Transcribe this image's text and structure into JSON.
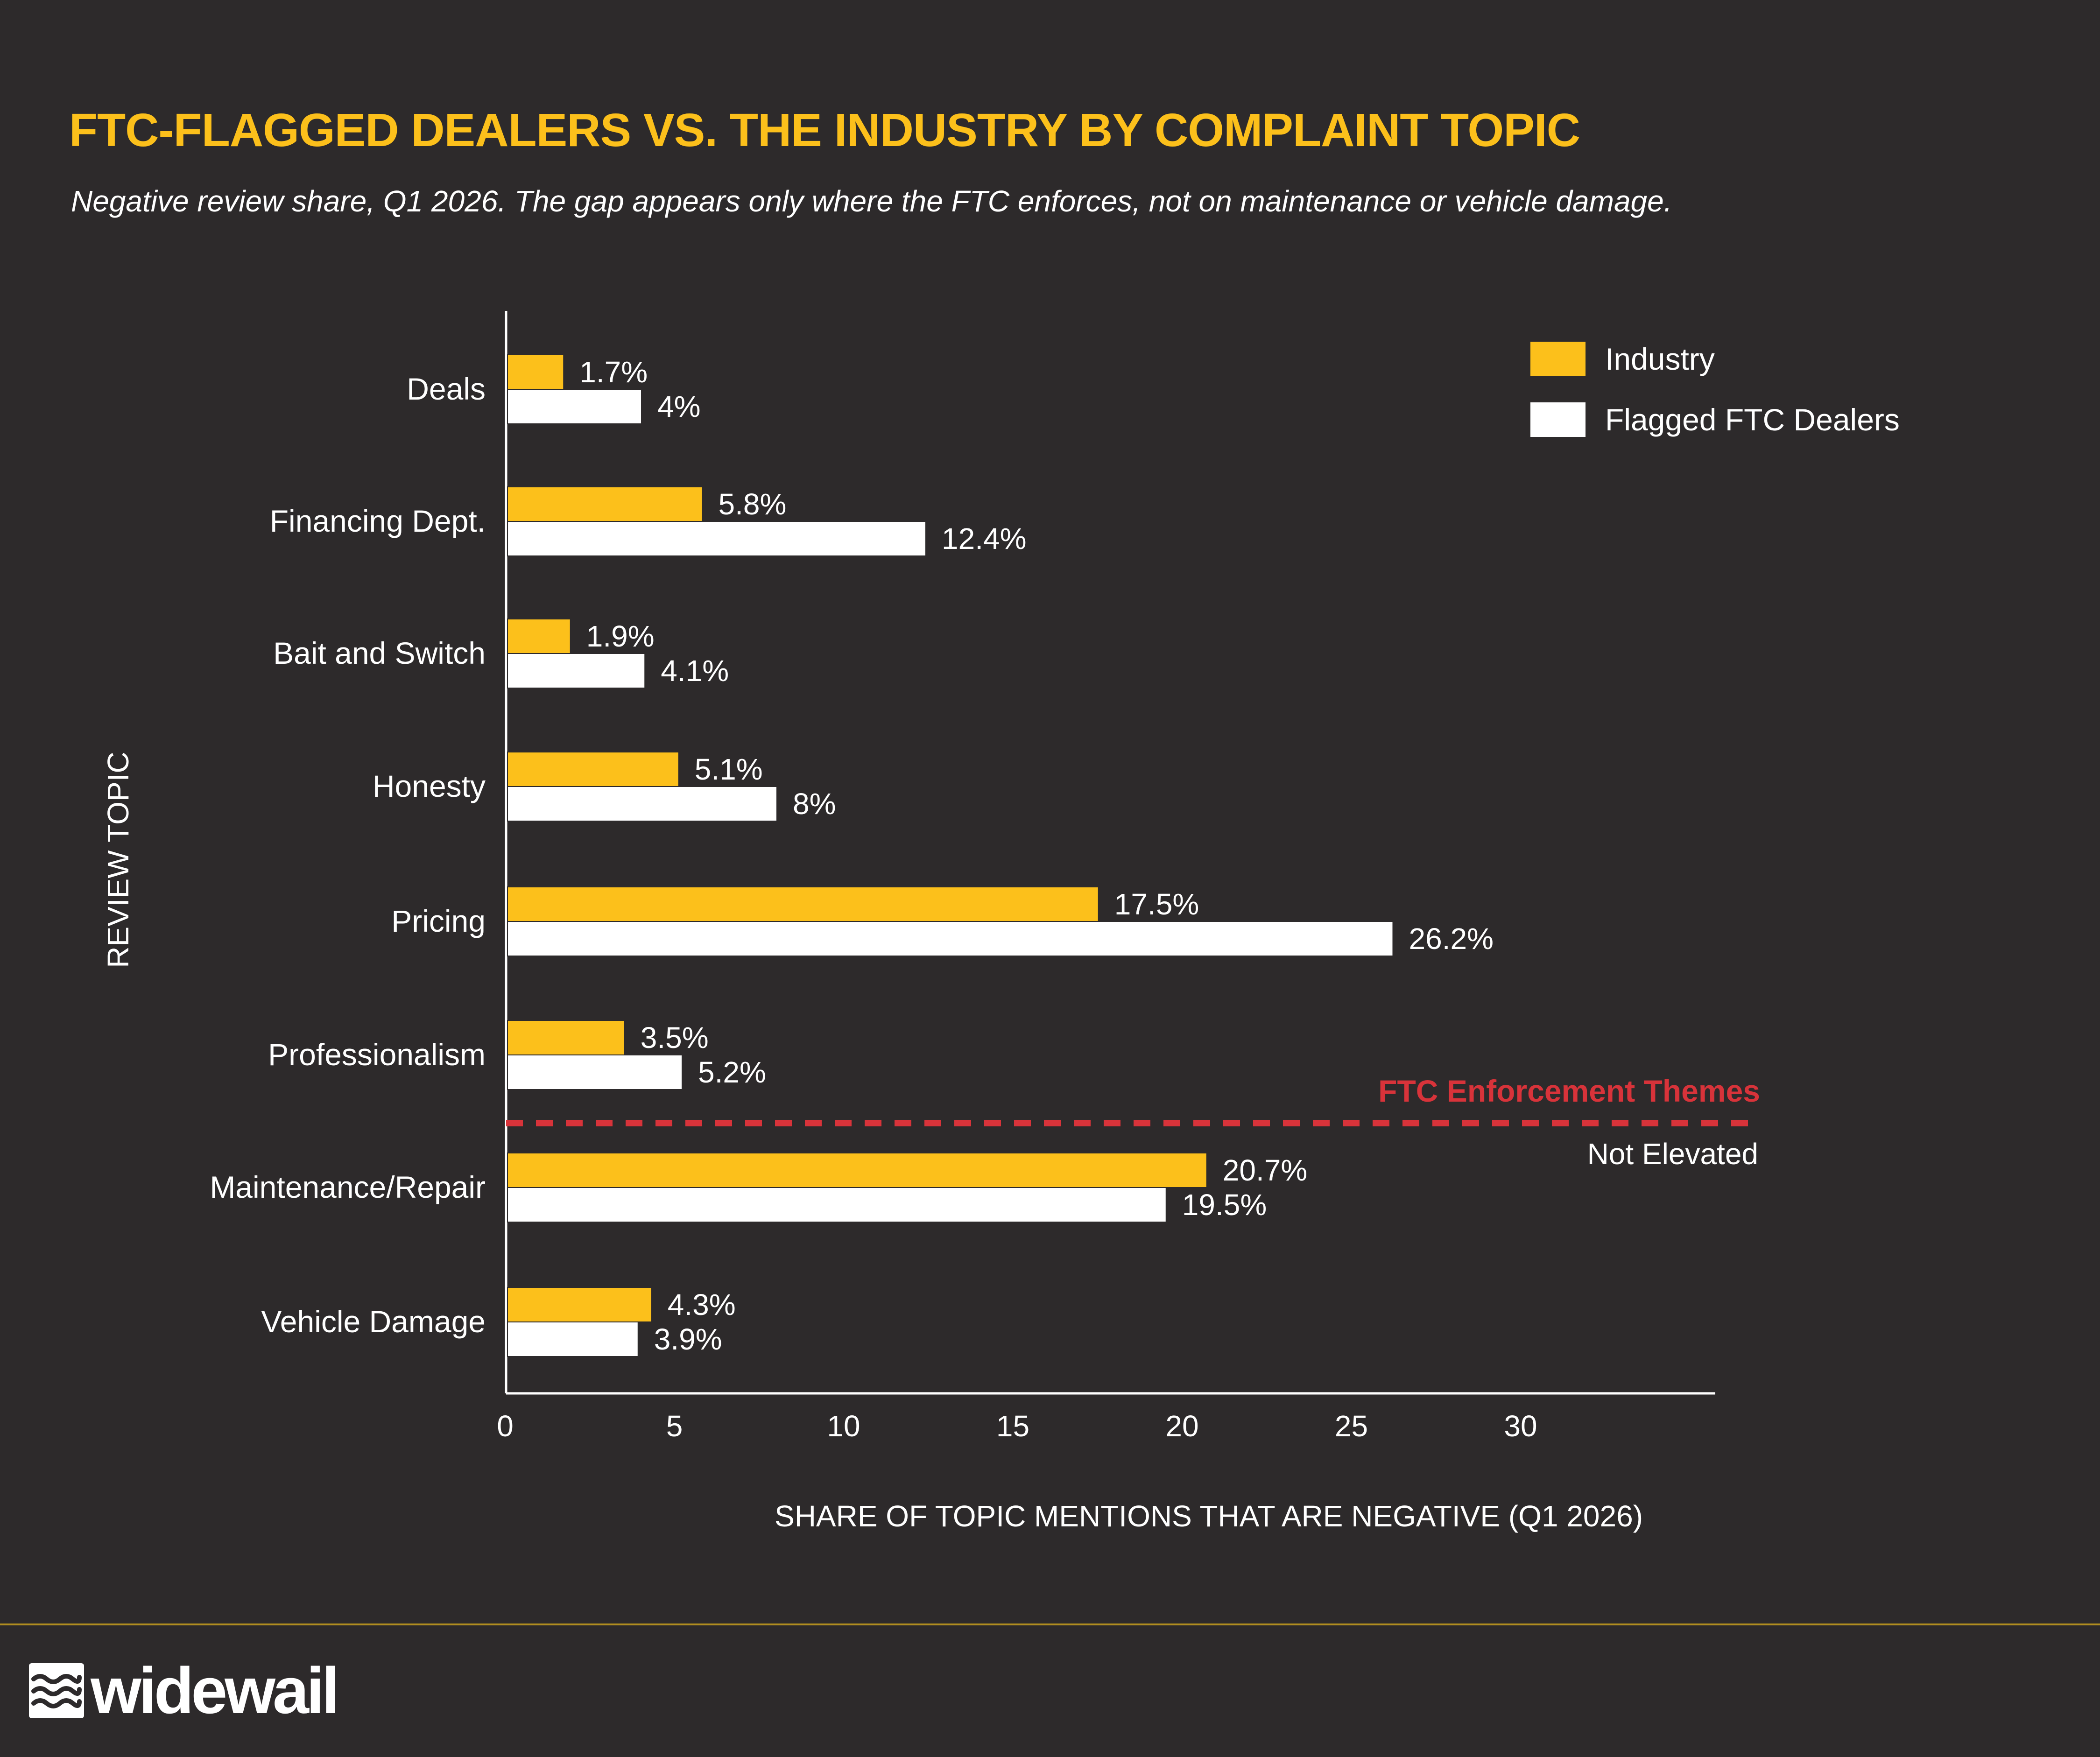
{
  "header": {
    "title": "FTC-Flagged Dealers vs. The Industry by Complaint Topic",
    "subtitle": "Negative review share, Q1 2026. The gap appears only where the FTC enforces, not on maintenance or vehicle damage."
  },
  "chart_data": {
    "type": "bar",
    "orientation": "horizontal",
    "title": "FTC-Flagged Dealers vs. The Industry by Complaint Topic",
    "subtitle": "Negative review share, Q1 2026. The gap appears only where the FTC enforces, not on maintenance or vehicle damage.",
    "xlabel": "SHARE OF TOPIC MENTIONS THAT ARE NEGATIVE (Q1 2026)",
    "ylabel": "REVIEW TOPIC",
    "xlim": [
      0,
      36
    ],
    "x_ticks": [
      0,
      5,
      10,
      15,
      20,
      25,
      30
    ],
    "categories": [
      "Deals",
      "Financing Dept.",
      "Bait and Switch",
      "Honesty",
      "Pricing",
      "Professionalism",
      "Maintenance/Repair",
      "Vehicle Damage"
    ],
    "series": [
      {
        "name": "Industry",
        "color": "#fcc01b",
        "values": [
          1.7,
          5.8,
          1.9,
          5.1,
          17.5,
          3.5,
          20.7,
          4.3
        ],
        "labels": [
          "1.7%",
          "5.8%",
          "1.9%",
          "5.1%",
          "17.5%",
          "3.5%",
          "20.7%",
          "4.3%"
        ]
      },
      {
        "name": "Flagged FTC Dealers",
        "color": "#ffffff",
        "values": [
          4,
          12.4,
          4.1,
          8,
          26.2,
          5.2,
          19.5,
          3.9
        ],
        "labels": [
          "4%",
          "12.4%",
          "4.1%",
          "8%",
          "26.2%",
          "5.2%",
          "19.5%",
          "3.9%"
        ]
      }
    ],
    "divider": {
      "after_category": "Professionalism",
      "style": "dashed",
      "color": "#d8333a",
      "label_above": "FTC Enforcement Themes",
      "label_below": "Not Elevated"
    },
    "legend_position": "top-right",
    "grid": false
  },
  "brand": {
    "name": "widewail",
    "accent": "#fcc01b",
    "background": "#2d2a2b",
    "footer_rule": "#b08d20",
    "icon": "wave-logo-icon"
  }
}
